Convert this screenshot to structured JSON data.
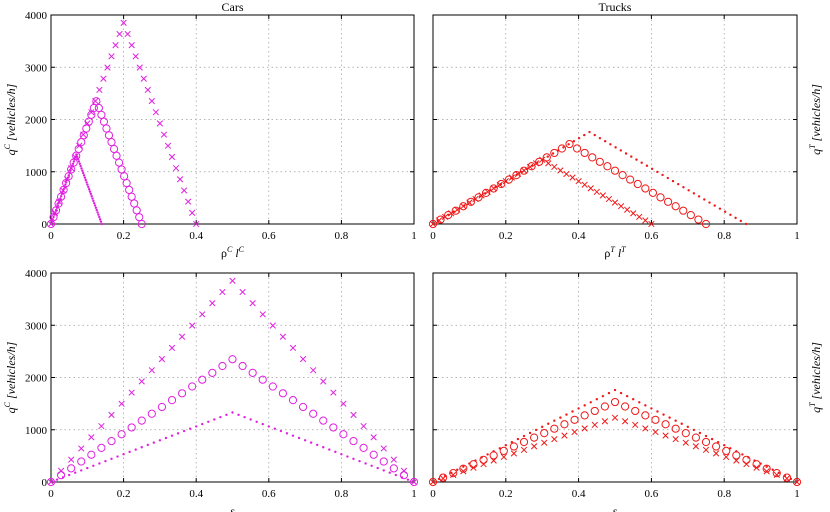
{
  "colors": {
    "cars": "#e020e0",
    "trucks": "#f01818"
  },
  "chart_data": [
    {
      "type": "scatter",
      "panel": "top-left",
      "title": "Cars",
      "xlabel_parts": [
        "ρ",
        "C",
        " l",
        "C"
      ],
      "ylabel_parts": [
        "q",
        "C",
        " [vehicles/h]"
      ],
      "ylabel_side": "left",
      "xlim": [
        0,
        1
      ],
      "ylim": [
        0,
        4000
      ],
      "xticks": [
        "0",
        "0.2",
        "0.4",
        "0.6",
        "0.8",
        "1"
      ],
      "yticks": [
        "0",
        "1000",
        "2000",
        "3000",
        "4000"
      ],
      "grid": true,
      "series": [
        {
          "marker": "x",
          "color": "cars",
          "peak": [
            0.2,
            3850
          ],
          "end": 0.4
        },
        {
          "marker": "o",
          "color": "cars",
          "peak": [
            0.125,
            2350
          ],
          "end": 0.25
        },
        {
          "marker": "dot",
          "color": "cars",
          "peak": [
            0.07,
            1330
          ],
          "end": 0.14
        }
      ]
    },
    {
      "type": "scatter",
      "panel": "top-right",
      "title": "Trucks",
      "xlabel_parts": [
        "ρ",
        "T",
        " l",
        "T"
      ],
      "ylabel_parts": [
        "q",
        "T",
        " [vehicles/h]"
      ],
      "ylabel_side": "right",
      "xlim": [
        0,
        1
      ],
      "ylim": [
        0,
        4000
      ],
      "xticks": [
        "0",
        "0.2",
        "0.4",
        "0.6",
        "0.8",
        "1"
      ],
      "yticks": [],
      "grid": true,
      "series": [
        {
          "marker": "dot",
          "color": "trucks",
          "peak": [
            0.43,
            1760
          ],
          "end": 0.86
        },
        {
          "marker": "o",
          "color": "trucks",
          "peak": [
            0.375,
            1530
          ],
          "end": 0.75
        },
        {
          "marker": "x",
          "color": "trucks",
          "peak": [
            0.3,
            1230
          ],
          "end": 0.6
        }
      ]
    },
    {
      "type": "scatter",
      "panel": "bottom-left",
      "title": "",
      "xlabel_parts": [
        "s"
      ],
      "ylabel_parts": [
        "q",
        "C",
        " [vehicles/h]"
      ],
      "ylabel_side": "left",
      "xlim": [
        0,
        1
      ],
      "ylim": [
        0,
        4000
      ],
      "xticks": [
        "0",
        "0.2",
        "0.4",
        "0.6",
        "0.8",
        "1"
      ],
      "yticks": [
        "0",
        "1000",
        "2000",
        "3000",
        "4000"
      ],
      "grid": true,
      "series": [
        {
          "marker": "x",
          "color": "cars",
          "peak": [
            0.5,
            3850
          ],
          "end": 1
        },
        {
          "marker": "o",
          "color": "cars",
          "peak": [
            0.5,
            2350
          ],
          "end": 1
        },
        {
          "marker": "dot",
          "color": "cars",
          "peak": [
            0.5,
            1330
          ],
          "end": 1
        }
      ]
    },
    {
      "type": "scatter",
      "panel": "bottom-right",
      "title": "",
      "xlabel_parts": [
        "s"
      ],
      "ylabel_parts": [
        "q",
        "T",
        " [vehicles/h]"
      ],
      "ylabel_side": "right",
      "xlim": [
        0,
        1
      ],
      "ylim": [
        0,
        4000
      ],
      "xticks": [
        "0",
        "0.2",
        "0.4",
        "0.6",
        "0.8",
        "1"
      ],
      "yticks": [],
      "grid": true,
      "series": [
        {
          "marker": "dot",
          "color": "trucks",
          "peak": [
            0.5,
            1760
          ],
          "end": 1
        },
        {
          "marker": "o",
          "color": "trucks",
          "peak": [
            0.5,
            1530
          ],
          "end": 1
        },
        {
          "marker": "x",
          "color": "trucks",
          "peak": [
            0.5,
            1230
          ],
          "end": 1
        }
      ]
    }
  ]
}
